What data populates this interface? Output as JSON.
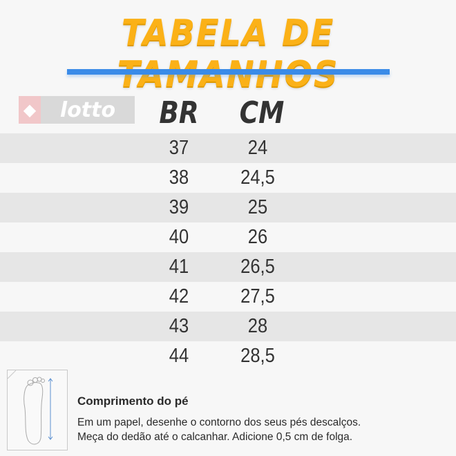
{
  "title": "TABELA DE TAMANHOS",
  "colors": {
    "title": "#fbb117",
    "accent_bar": "#3a8be8",
    "stripe": "#e6e6e6"
  },
  "brand_logo": {
    "text": "lotto",
    "icon": "lotto-diamond-icon"
  },
  "table": {
    "headers": [
      "BR",
      "CM"
    ],
    "rows": [
      [
        "37",
        "24"
      ],
      [
        "38",
        "24,5"
      ],
      [
        "39",
        "25"
      ],
      [
        "40",
        "26"
      ],
      [
        "41",
        "26,5"
      ],
      [
        "42",
        "27,5"
      ],
      [
        "43",
        "28"
      ],
      [
        "44",
        "28,5"
      ]
    ]
  },
  "instructions": {
    "icon": "foot-measure-icon",
    "heading": "Comprimento do pé",
    "lines": [
      "Em um papel, desenhe o contorno dos seus pés descalços.",
      "Meça do dedão até o calcanhar. Adicione 0,5 cm de folga."
    ]
  }
}
